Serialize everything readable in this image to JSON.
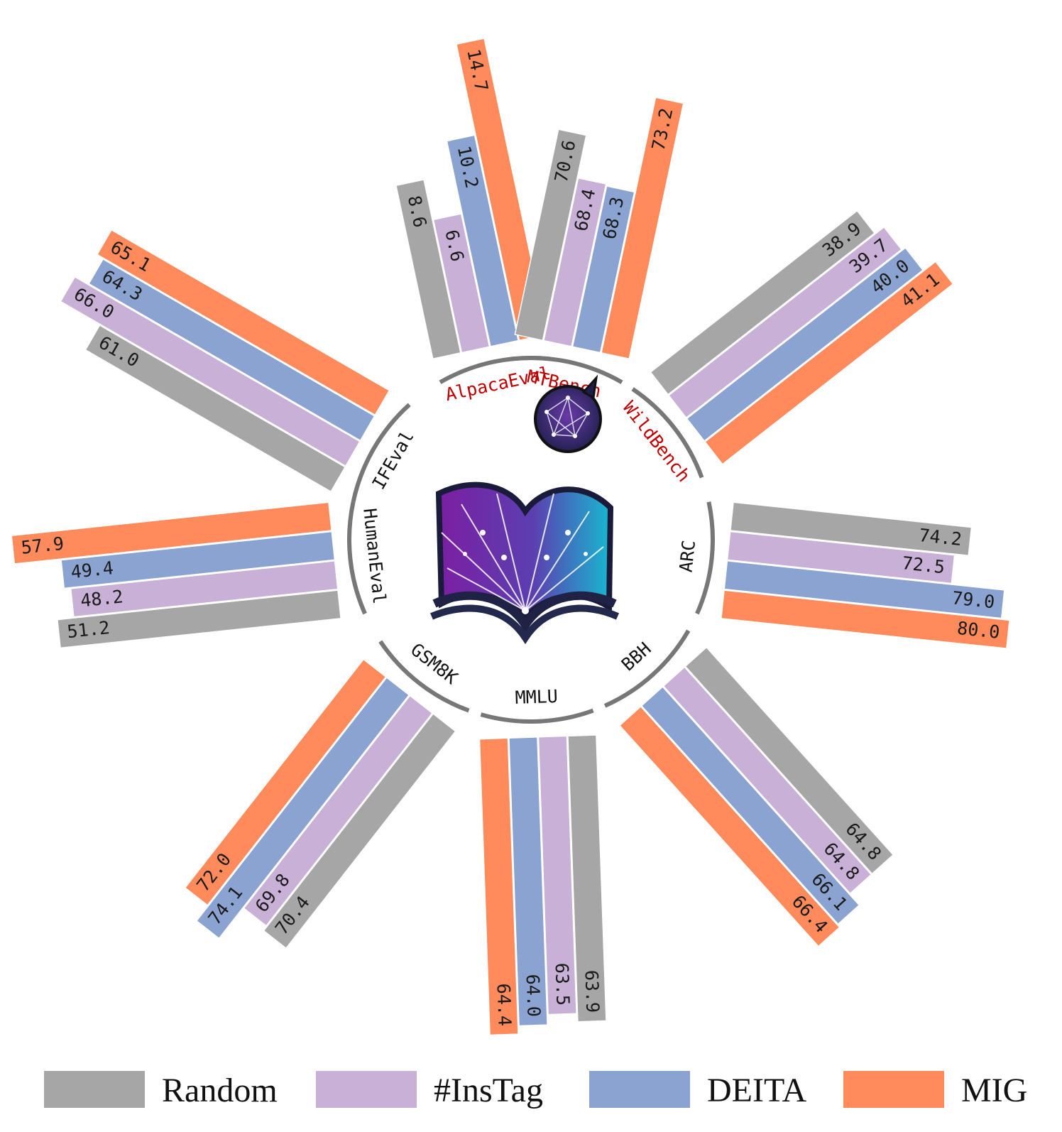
{
  "chart_data": {
    "type": "bar",
    "subtype": "radial grouped bar",
    "categories": [
      "AlpacaEval",
      "MTBench",
      "WildBench",
      "ARC",
      "BBH",
      "MMLU",
      "GSM8K",
      "HumanEval",
      "IFEval"
    ],
    "highlighted_categories": [
      "AlpacaEval",
      "MTBench",
      "WildBench"
    ],
    "series": [
      {
        "name": "Random",
        "color": "#a6a6a6",
        "values": [
          8.6,
          70.6,
          38.9,
          74.2,
          64.8,
          63.9,
          70.4,
          51.2,
          61.0
        ]
      },
      {
        "name": "#InsTag",
        "color": "#c8b0d6",
        "values": [
          6.6,
          68.4,
          39.7,
          72.5,
          64.8,
          63.5,
          69.8,
          48.2,
          66.0
        ]
      },
      {
        "name": "DEITA",
        "color": "#8ba3d0",
        "values": [
          10.2,
          68.3,
          40.0,
          79.0,
          66.1,
          64.0,
          74.1,
          49.4,
          64.3
        ]
      },
      {
        "name": "MIG",
        "color": "#ff8a5b",
        "values": [
          14.7,
          73.2,
          41.1,
          80.0,
          66.4,
          64.4,
          72.0,
          57.9,
          65.1
        ]
      }
    ],
    "label_colors": {
      "highlighted": "#c00000",
      "normal": "#111111"
    },
    "legend_position": "bottom"
  },
  "center_icons": [
    "open-book-network-icon",
    "chat-bubble-network-icon"
  ]
}
